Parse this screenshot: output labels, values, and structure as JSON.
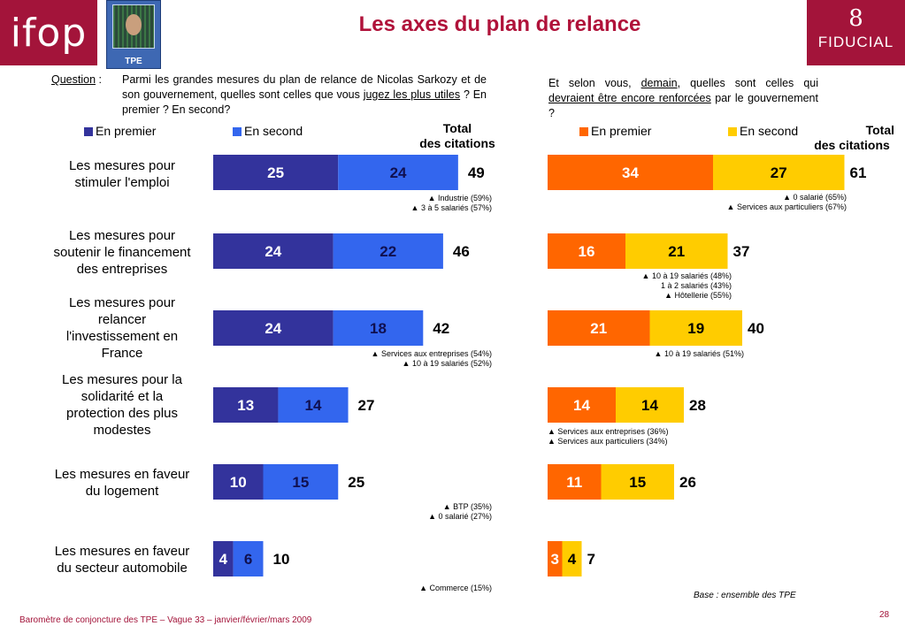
{
  "header": {
    "title": "Les axes du plan de relance",
    "ifop_logo": "ifop",
    "fiducial_logo": "FIDUCIAL",
    "tpe_badge": "TPE"
  },
  "left_question": {
    "label": "Question",
    "colon": " :",
    "text_before": "Parmi les grandes mesures du plan de relance de Nicolas Sarkozy et de son gouvernement, quelles sont celles que vous ",
    "underlined": "jugez les plus utiles",
    "text_after": " ? En premier ? En second?"
  },
  "right_question": {
    "part1": "Et selon vous, ",
    "underlined1": "demain",
    "part2": ", quelles sont celles qui ",
    "underlined2": "devraient être encore renforcées",
    "part3": " par le gouvernement ?"
  },
  "legend_left": {
    "first": "En premier",
    "second": "En second"
  },
  "legend_right": {
    "first": "En premier",
    "second": "En second"
  },
  "total_header": {
    "line1": "Total",
    "line2": "des citations"
  },
  "row_labels": [
    [
      "Les mesures pour",
      "stimuler l'emploi"
    ],
    [
      "Les mesures pour",
      "soutenir le financement",
      "des entreprises"
    ],
    [
      "Les mesures pour",
      "relancer",
      "l'investissement en",
      "France"
    ],
    [
      "Les mesures pour la",
      "solidarité et la",
      "protection des plus",
      "modestes"
    ],
    [
      "Les mesures en faveur",
      "du logement"
    ],
    [
      "Les mesures en faveur",
      "du secteur automobile"
    ]
  ],
  "notes_left": [
    [
      "▲ Industrie (59%)",
      "▲ 3 à 5 salariés (57%)"
    ],
    [],
    [
      "▲ Services aux entreprises (54%)",
      "▲ 10 à 19 salariés (52%)"
    ],
    [],
    [
      "▲ BTP (35%)",
      "▲ 0 salarié (27%)"
    ],
    [
      "▲ Commerce (15%)"
    ]
  ],
  "notes_right": [
    [
      "▲ 0 salarié (65%)",
      "▲ Services aux particuliers (67%)"
    ],
    [
      "▲ 10 à 19 salariés (48%)",
      "1 à 2 salariés (43%)",
      "▲ Hôtellerie (55%)"
    ],
    [
      "▲ 10 à 19 salariés (51%)"
    ],
    [
      "▲ Services aux entreprises (36%)",
      "▲ Services aux particuliers (34%)"
    ],
    [],
    []
  ],
  "base_note": "Base : ensemble des TPE",
  "footer": "Baromètre de conjoncture des TPE – Vague 33 – janvier/février/mars 2009",
  "page_number": "28",
  "colors": {
    "brand": "#a3143a",
    "title": "#b0123a",
    "left_first": "#33339c",
    "left_second": "#3366ee",
    "right_first": "#ff6600",
    "right_second": "#ffcc00"
  },
  "chart_data": [
    {
      "type": "bar",
      "orientation": "horizontal",
      "stacked": true,
      "categories": [
        "Les mesures pour stimuler l'emploi",
        "Les mesures pour soutenir le financement des entreprises",
        "Les mesures pour relancer l'investissement en France",
        "Les mesures pour la solidarité et la protection des plus modestes",
        "Les mesures en faveur du logement",
        "Les mesures en faveur du secteur automobile"
      ],
      "series": [
        {
          "name": "En premier",
          "values": [
            25,
            24,
            24,
            13,
            10,
            4
          ]
        },
        {
          "name": "En second",
          "values": [
            24,
            22,
            18,
            14,
            15,
            6
          ]
        }
      ],
      "totals": [
        49,
        46,
        42,
        27,
        25,
        10
      ],
      "totals_label": "Total des citations"
    },
    {
      "type": "bar",
      "orientation": "horizontal",
      "stacked": true,
      "categories": [
        "Les mesures pour stimuler l'emploi",
        "Les mesures pour soutenir le financement des entreprises",
        "Les mesures pour relancer l'investissement en France",
        "Les mesures pour la solidarité et la protection des plus modestes",
        "Les mesures en faveur du logement",
        "Les mesures en faveur du secteur automobile"
      ],
      "series": [
        {
          "name": "En premier",
          "values": [
            34,
            16,
            21,
            14,
            11,
            3
          ]
        },
        {
          "name": "En second",
          "values": [
            27,
            21,
            19,
            14,
            15,
            4
          ]
        }
      ],
      "totals": [
        61,
        37,
        40,
        28,
        26,
        7
      ],
      "totals_label": "Total des citations"
    }
  ]
}
